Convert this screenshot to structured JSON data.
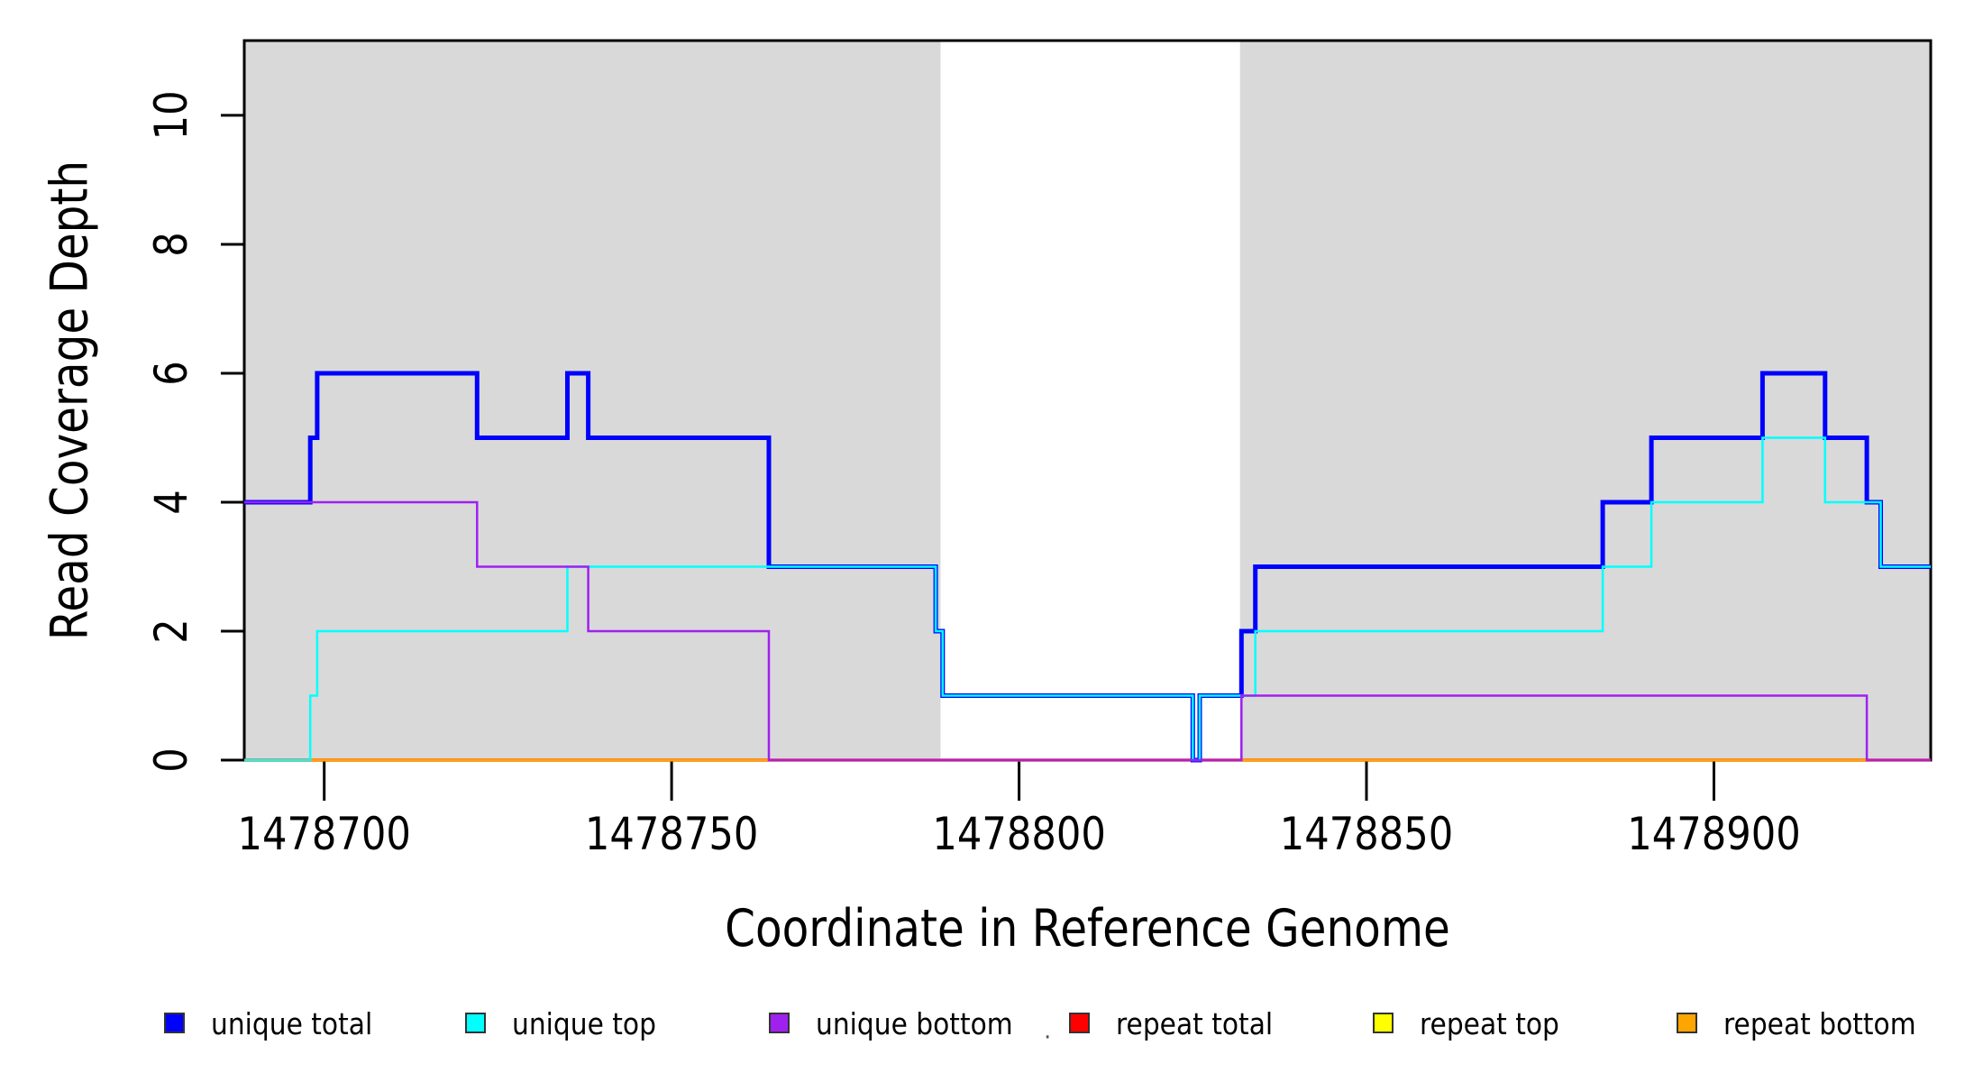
{
  "figure": {
    "background": "#ffffff",
    "plot_region_fill": "#ffffff"
  },
  "chart_data": {
    "type": "line",
    "subtype": "step",
    "title": "",
    "xlabel": "Coordinate in Reference Genome",
    "ylabel": "Read Coverage Depth",
    "xlim": [
      1478688.5,
      1478931.2
    ],
    "ylim": [
      0,
      11.16
    ],
    "x_ticks": [
      1478700,
      1478750,
      1478800,
      1478850,
      1478900
    ],
    "y_ticks": [
      0,
      2,
      4,
      6,
      8,
      10
    ],
    "grid": false,
    "box_color": "#000000",
    "shaded_regions": {
      "color": "#d9d9d9",
      "intervals": [
        [
          1478688.5,
          1478788.7
        ],
        [
          1478831.8,
          1478931.2
        ]
      ]
    },
    "series": [
      {
        "name": "repeat total",
        "color": "#ff0000",
        "lwd": 3.5,
        "start_y": 0,
        "steps": []
      },
      {
        "name": "repeat top",
        "color": "#ffff00",
        "lwd": 2.5,
        "start_y": 0,
        "steps": []
      },
      {
        "name": "repeat bottom",
        "color": "#ffa500",
        "lwd": 3,
        "start_y": 0,
        "steps": []
      },
      {
        "name": "unique total",
        "color": "#0000ff",
        "lwd": 5,
        "start_y": 4,
        "steps": [
          [
            1478698,
            5
          ],
          [
            1478699,
            6
          ],
          [
            1478722,
            5
          ],
          [
            1478735,
            6
          ],
          [
            1478738,
            5
          ],
          [
            1478764,
            3
          ],
          [
            1478788,
            2
          ],
          [
            1478789,
            1
          ],
          [
            1478825,
            0
          ],
          [
            1478826,
            1
          ],
          [
            1478832,
            2
          ],
          [
            1478834,
            3
          ],
          [
            1478884,
            4
          ],
          [
            1478891,
            5
          ],
          [
            1478907,
            6
          ],
          [
            1478916,
            5
          ],
          [
            1478922,
            4
          ],
          [
            1478924,
            3
          ]
        ]
      },
      {
        "name": "unique top",
        "color": "#00ffff",
        "lwd": 2.5,
        "start_y": 0,
        "steps": [
          [
            1478698,
            1
          ],
          [
            1478699,
            2
          ],
          [
            1478735,
            3
          ],
          [
            1478788,
            2
          ],
          [
            1478789,
            1
          ],
          [
            1478825,
            0
          ],
          [
            1478826,
            1
          ],
          [
            1478834,
            2
          ],
          [
            1478884,
            3
          ],
          [
            1478891,
            4
          ],
          [
            1478907,
            5
          ],
          [
            1478916,
            4
          ],
          [
            1478924,
            3
          ]
        ]
      },
      {
        "name": "unique bottom",
        "color": "#a020f0",
        "lwd": 2.5,
        "start_y": 4,
        "steps": [
          [
            1478722,
            3
          ],
          [
            1478738,
            2
          ],
          [
            1478764,
            0
          ],
          [
            1478832,
            1
          ],
          [
            1478922,
            0
          ]
        ]
      }
    ]
  },
  "legend": {
    "items": [
      {
        "label": "unique total",
        "color": "#0000ff"
      },
      {
        "label": "unique top",
        "color": "#00ffff"
      },
      {
        "label": "unique bottom",
        "color": "#a020f0"
      },
      {
        "label": "repeat total",
        "color": "#ff0000"
      },
      {
        "label": "repeat top",
        "color": "#ffff00"
      },
      {
        "label": "repeat bottom",
        "color": "#ffa500"
      }
    ],
    "stray_dot": "·"
  }
}
